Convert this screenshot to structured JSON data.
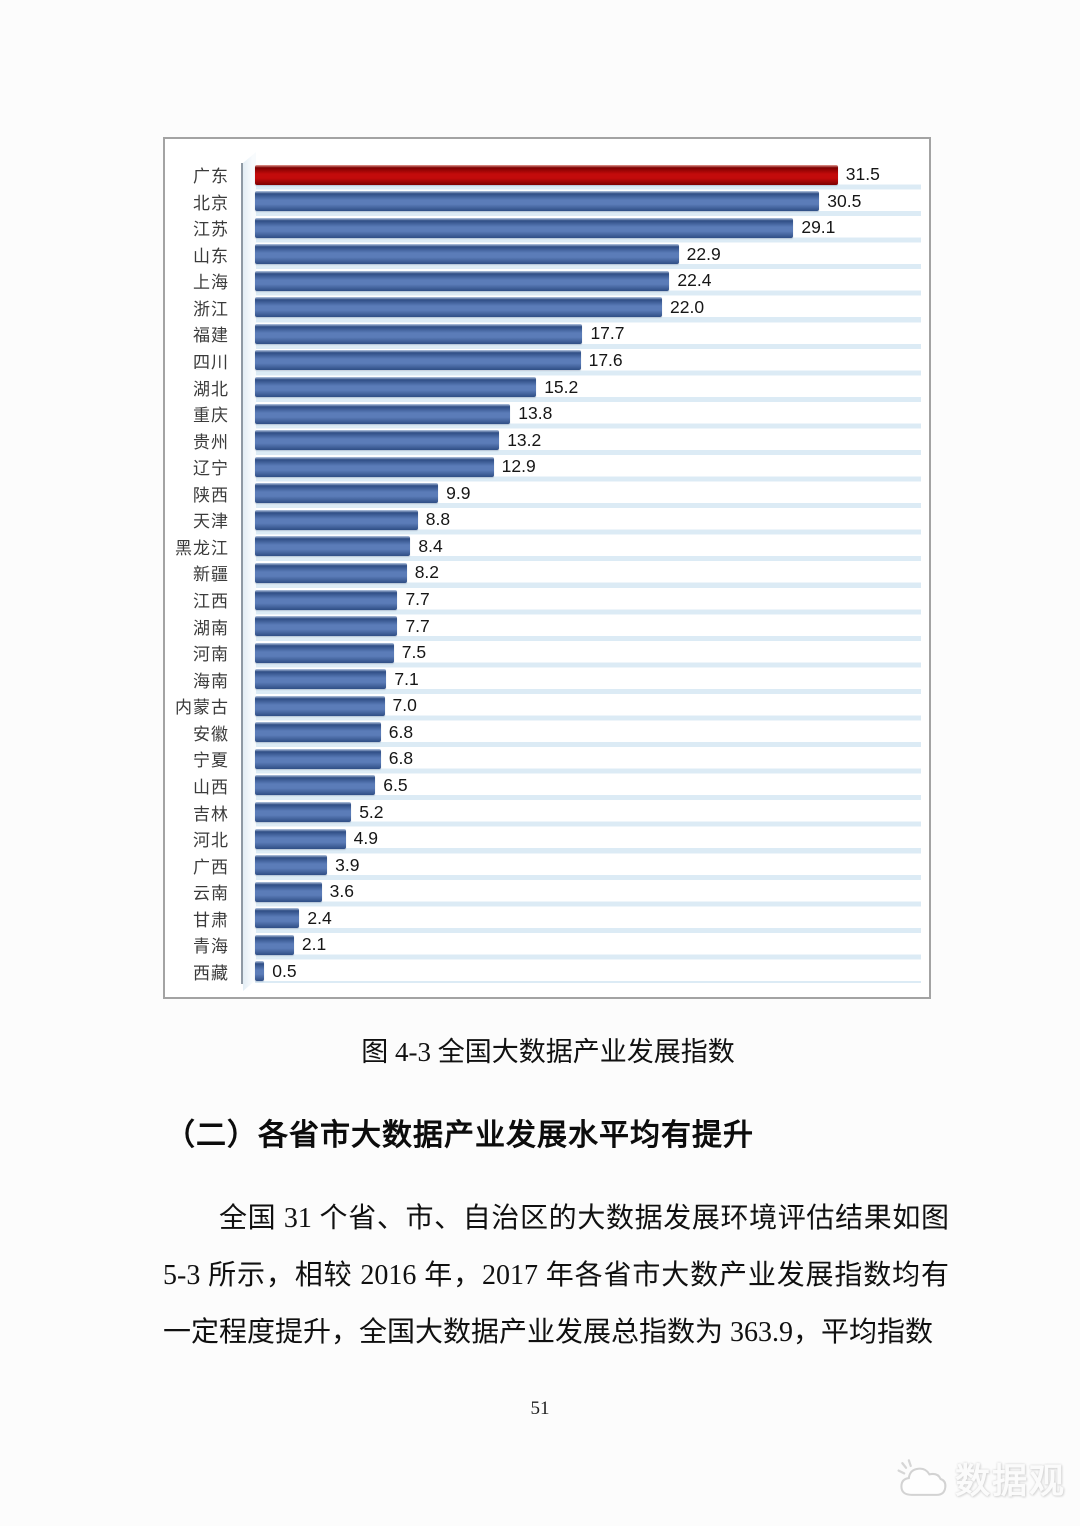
{
  "figure": {
    "caption": "图 4-3 全国大数据产业发展指数"
  },
  "section": {
    "heading": "（二）各省市大数据产业发展水平均有提升",
    "paragraph": "全国 31 个省、市、自治区的大数据发展环境评估结果如图 5-3 所示，相较 2016 年，2017 年各省市大数产业发展指数均有一定程度提升，全国大数据产业发展总指数为 363.9，平均指数"
  },
  "page": {
    "number": "51",
    "watermark": "数据观"
  },
  "chart_data": {
    "type": "bar",
    "orientation": "horizontal",
    "title": "",
    "xlabel": "",
    "ylabel": "",
    "xlim": [
      0,
      33
    ],
    "grid": false,
    "value_labels": true,
    "categories": [
      "广东",
      "北京",
      "江苏",
      "山东",
      "上海",
      "浙江",
      "福建",
      "四川",
      "湖北",
      "重庆",
      "贵州",
      "辽宁",
      "陕西",
      "天津",
      "黑龙江",
      "新疆",
      "江西",
      "湖南",
      "河南",
      "海南",
      "内蒙古",
      "安徽",
      "宁夏",
      "山西",
      "吉林",
      "河北",
      "广西",
      "云南",
      "甘肃",
      "青海",
      "西藏"
    ],
    "values": [
      31.5,
      30.5,
      29.1,
      22.9,
      22.4,
      22.0,
      17.7,
      17.6,
      15.2,
      13.8,
      13.2,
      12.9,
      9.9,
      8.8,
      8.4,
      8.2,
      7.7,
      7.7,
      7.5,
      7.1,
      7.0,
      6.8,
      6.8,
      6.5,
      5.2,
      4.9,
      3.9,
      3.6,
      2.4,
      2.1,
      0.5
    ],
    "highlight_index": 0,
    "colors": {
      "bar_mid": "#5b7cb8",
      "bar_dark": "#2f4e85",
      "bar_light": "#b6c7e1",
      "highlight_mid": "#c30b0b",
      "highlight_dark": "#7d0000",
      "highlight_light": "#e59a93"
    }
  }
}
